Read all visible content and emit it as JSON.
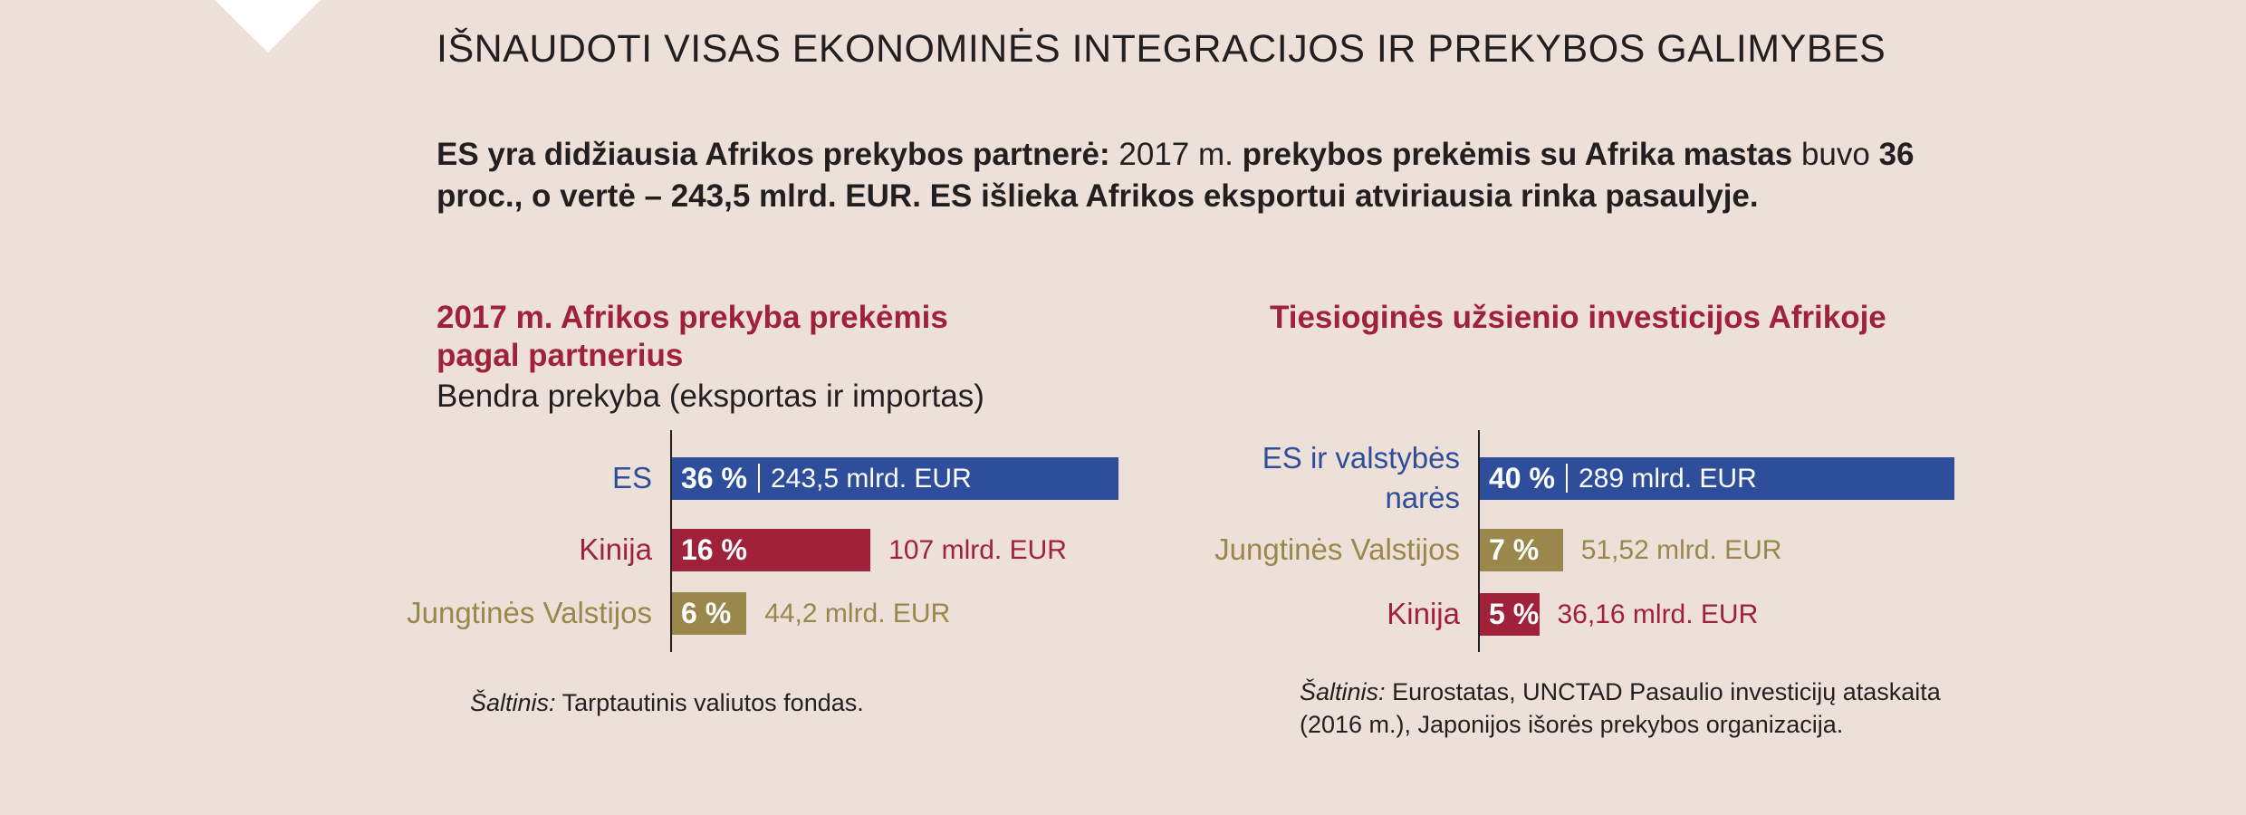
{
  "title": "IŠNAUDOTI VISAS EKONOMINĖS INTEGRACIJOS IR PREKYBOS GALIMYBES",
  "intro": [
    {
      "text": "ES yra didžiausia Afrikos prekybos partnerė: ",
      "bold": true
    },
    {
      "text": "2017 m. ",
      "bold": false
    },
    {
      "text": "prekybos prekėmis su Afrika mastas ",
      "bold": true
    },
    {
      "text": "buvo ",
      "bold": false
    },
    {
      "text": "36 proc., o vertė – 243,5 mlrd. EUR. ES išlieka Afrikos eksportui atviriausia rinka pasaulyje.",
      "bold": true
    }
  ],
  "chart_data": [
    {
      "type": "bar",
      "orientation": "horizontal",
      "title": "2017 m. Afrikos prekyba prekėmis pagal partnerius",
      "subtitle": "Bendra prekyba (eksportas ir importas)",
      "categories": [
        "ES",
        "Kinija",
        "Jungtinės Valstijos"
      ],
      "values": [
        36,
        16,
        6
      ],
      "value_labels": [
        "36 %",
        "16 %",
        "6 %"
      ],
      "colors": [
        "#2e4d9b",
        "#a0213a",
        "#9a874b"
      ],
      "amounts": [
        243.5,
        107,
        44.2
      ],
      "amount_labels": [
        "243,5 mlrd. EUR",
        "107 mlrd. EUR",
        "44,2 mlrd. EUR"
      ],
      "source_label": "Šaltinis:",
      "source": "Tarptautinis valiutos fondas."
    },
    {
      "type": "bar",
      "orientation": "horizontal",
      "title": "Tiesioginės užsienio investicijos Afrikoje",
      "categories": [
        "ES ir valstybės\nnarės",
        "Jungtinės Valstijos",
        "Kinija"
      ],
      "values": [
        40,
        7,
        5
      ],
      "value_labels": [
        "40 %",
        "7 %",
        "5 %"
      ],
      "colors": [
        "#2e4d9b",
        "#9a874b",
        "#a0213a"
      ],
      "amounts": [
        289,
        51.52,
        36.16
      ],
      "amount_labels": [
        "289 mlrd. EUR",
        "51,52 mlrd. EUR",
        "36,16 mlrd. EUR"
      ],
      "source_label": "Šaltinis:",
      "source": "Eurostatas, UNCTAD Pasaulio investicijų ataskaita (2016 m.), Japonijos išorės prekybos organizacija."
    }
  ]
}
